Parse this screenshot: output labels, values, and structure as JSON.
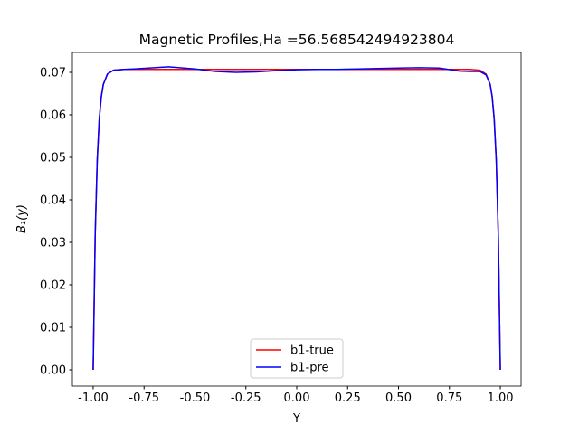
{
  "chart_data": {
    "type": "line",
    "title": "Magnetic Profiles,Ha =56.568542494923804",
    "xlabel": "Y",
    "ylabel": "B₁(y)",
    "x": [
      -1,
      -0.99,
      -0.98,
      -0.97,
      -0.96,
      -0.95,
      -0.93,
      -0.9,
      -0.85,
      -0.8,
      -0.7,
      -0.63,
      -0.5,
      -0.4,
      -0.3,
      -0.2,
      -0.1,
      0,
      0.1,
      0.2,
      0.3,
      0.4,
      0.5,
      0.6,
      0.7,
      0.8,
      0.85,
      0.9,
      0.93,
      0.95,
      0.96,
      0.97,
      0.98,
      0.99,
      1
    ],
    "series": [
      {
        "name": "b1-true",
        "color": "#ff0000",
        "values": [
          0,
          0.0319,
          0.0494,
          0.059,
          0.0643,
          0.0672,
          0.0696,
          0.0705,
          0.0707,
          0.0707,
          0.0707,
          0.0707,
          0.0707,
          0.0707,
          0.0707,
          0.0707,
          0.0707,
          0.0707,
          0.0707,
          0.0707,
          0.0707,
          0.0707,
          0.0707,
          0.0707,
          0.0707,
          0.0707,
          0.0707,
          0.0705,
          0.0696,
          0.0672,
          0.0643,
          0.059,
          0.0494,
          0.0319,
          0
        ]
      },
      {
        "name": "b1-pre",
        "color": "#0000ff",
        "values": [
          0,
          0.0319,
          0.0494,
          0.059,
          0.0643,
          0.0672,
          0.0696,
          0.0705,
          0.0707,
          0.0708,
          0.0711,
          0.0713,
          0.0708,
          0.0702,
          0.07,
          0.0701,
          0.0704,
          0.0706,
          0.0707,
          0.0707,
          0.0708,
          0.0709,
          0.071,
          0.0711,
          0.071,
          0.0703,
          0.0702,
          0.0702,
          0.0694,
          0.0672,
          0.0643,
          0.059,
          0.0494,
          0.0319,
          0
        ]
      }
    ],
    "xlim": [
      -1.102,
      1.102
    ],
    "ylim": [
      -0.00383,
      0.07468
    ],
    "xticks": [
      {
        "value": -1,
        "label": "-1.00"
      },
      {
        "value": -0.75,
        "label": "-0.75"
      },
      {
        "value": -0.5,
        "label": "-0.50"
      },
      {
        "value": -0.25,
        "label": "-0.25"
      },
      {
        "value": 0,
        "label": "0.00"
      },
      {
        "value": 0.25,
        "label": "0.25"
      },
      {
        "value": 0.5,
        "label": "0.50"
      },
      {
        "value": 0.75,
        "label": "0.75"
      },
      {
        "value": 1,
        "label": "1.00"
      }
    ],
    "yticks": [
      {
        "value": 0,
        "label": "0.00"
      },
      {
        "value": 0.01,
        "label": "0.01"
      },
      {
        "value": 0.02,
        "label": "0.02"
      },
      {
        "value": 0.03,
        "label": "0.03"
      },
      {
        "value": 0.04,
        "label": "0.04"
      },
      {
        "value": 0.05,
        "label": "0.05"
      },
      {
        "value": 0.06,
        "label": "0.06"
      },
      {
        "value": 0.07,
        "label": "0.07"
      }
    ],
    "legend": "lower center"
  }
}
